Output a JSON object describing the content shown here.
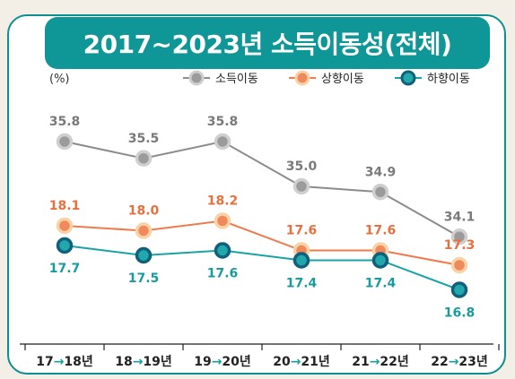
{
  "chart_data": {
    "type": "line",
    "title": "2017~2023년 소득이동성(전체)",
    "ylabel": "(%)",
    "categories": [
      "17→18년",
      "18→19년",
      "19→20년",
      "20→21년",
      "21→22년",
      "22→23년"
    ],
    "category_parts": [
      {
        "from": "17",
        "to": "18년"
      },
      {
        "from": "18",
        "to": "19년"
      },
      {
        "from": "19",
        "to": "20년"
      },
      {
        "from": "20",
        "to": "21년"
      },
      {
        "from": "21",
        "to": "22년"
      },
      {
        "from": "22",
        "to": "23년"
      }
    ],
    "legend_position": "top-right",
    "grid": false,
    "series": [
      {
        "name": "소득이동",
        "values": [
          35.8,
          35.5,
          35.8,
          35.0,
          34.9,
          34.1
        ],
        "color": "#8c8c8c",
        "marker_fill": "#9b9b9b",
        "marker_ring": "#cfcfcf",
        "label_color": "#7a7a7a"
      },
      {
        "name": "상향이동",
        "values": [
          18.1,
          18.0,
          18.2,
          17.6,
          17.6,
          17.3
        ],
        "color": "#ee7b4d",
        "marker_fill": "#f08a5d",
        "marker_ring": "#f9d3a6",
        "label_color": "#e8703f"
      },
      {
        "name": "하향이동",
        "values": [
          17.7,
          17.5,
          17.6,
          17.4,
          17.4,
          16.8
        ],
        "color": "#1aa3a3",
        "marker_fill": "#21a8ad",
        "marker_ring": "#11607a",
        "label_color": "#1a9a9e"
      }
    ]
  },
  "colors": {
    "banner": "#0f9696",
    "frame": "#0d8f8f",
    "arrow": "#16a0a0"
  }
}
